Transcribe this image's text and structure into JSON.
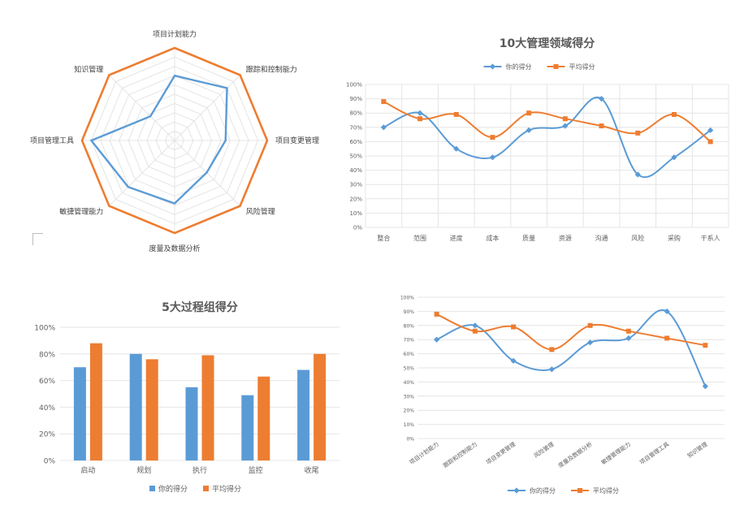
{
  "colors": {
    "mine": "#5B9BD5",
    "avg": "#ED7D31",
    "grid": "#e4e4e4",
    "text": "#606060"
  },
  "chart_data": [
    {
      "type": "radar",
      "title": "",
      "axes": [
        "项目计划能力",
        "跟踪和控制能力",
        "项目变更管理",
        "风险管理",
        "度量及数据分析",
        "敏捷管理能力",
        "项目管理工具",
        "知识管理"
      ],
      "rmax": 100,
      "rings": 10,
      "series": [
        {
          "name": "",
          "color": "#5B9BD5",
          "values": [
            70,
            80,
            55,
            49,
            68,
            71,
            90,
            37
          ]
        },
        {
          "name": "",
          "color": "#ED7D31",
          "values": [
            100,
            100,
            100,
            100,
            100,
            100,
            100,
            100
          ]
        }
      ]
    },
    {
      "type": "line",
      "title": "10大管理领域得分",
      "categories": [
        "整合",
        "范围",
        "进度",
        "成本",
        "质量",
        "资源",
        "沟通",
        "风险",
        "采购",
        "干系人"
      ],
      "ylim": [
        0,
        100
      ],
      "yticks": [
        "0%",
        "10%",
        "20%",
        "30%",
        "40%",
        "50%",
        "60%",
        "70%",
        "80%",
        "90%",
        "100%"
      ],
      "legend": "top",
      "series": [
        {
          "name": "你的得分",
          "color": "#5B9BD5",
          "values": [
            70,
            80,
            55,
            49,
            68,
            71,
            90,
            37,
            49,
            68
          ]
        },
        {
          "name": "平均得分",
          "color": "#ED7D31",
          "values": [
            88,
            76,
            79,
            63,
            80,
            76,
            71,
            66,
            79,
            60
          ]
        }
      ]
    },
    {
      "type": "bar",
      "title": "5大过程组得分",
      "categories": [
        "启动",
        "规划",
        "执行",
        "监控",
        "收尾"
      ],
      "ylim": [
        0,
        100
      ],
      "yticks": [
        "0%",
        "20%",
        "40%",
        "60%",
        "80%",
        "100%"
      ],
      "legend": "bottom",
      "series": [
        {
          "name": "你的得分",
          "color": "#5B9BD5",
          "values": [
            70,
            80,
            55,
            49,
            68
          ]
        },
        {
          "name": "平均得分",
          "color": "#ED7D31",
          "values": [
            88,
            76,
            79,
            63,
            80
          ]
        }
      ]
    },
    {
      "type": "line",
      "title": "",
      "categories": [
        "项目计划能力",
        "跟踪和控制能力",
        "项目变更管理",
        "风险管理",
        "度量及数据分析",
        "敏捷管理能力",
        "项目管理工具",
        "知识管理"
      ],
      "ylim": [
        0,
        100
      ],
      "yticks": [
        "0%",
        "10%",
        "20%",
        "30%",
        "40%",
        "50%",
        "60%",
        "70%",
        "80%",
        "90%",
        "100%"
      ],
      "legend": "bottom",
      "series": [
        {
          "name": "你的得分",
          "color": "#5B9BD5",
          "values": [
            70,
            80,
            55,
            49,
            68,
            71,
            90,
            37
          ]
        },
        {
          "name": "平均得分",
          "color": "#ED7D31",
          "values": [
            88,
            76,
            79,
            63,
            80,
            76,
            71,
            66
          ]
        }
      ]
    }
  ]
}
